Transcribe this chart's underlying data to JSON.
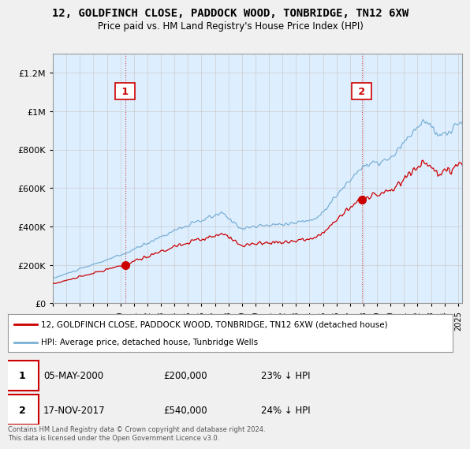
{
  "title": "12, GOLDFINCH CLOSE, PADDOCK WOOD, TONBRIDGE, TN12 6XW",
  "subtitle": "Price paid vs. HM Land Registry's House Price Index (HPI)",
  "sale1_date": "05-MAY-2000",
  "sale1_price": 200000,
  "sale1_pct": "23%",
  "sale1_label": "1",
  "sale2_date": "17-NOV-2017",
  "sale2_price": 540000,
  "sale2_pct": "24%",
  "sale2_label": "2",
  "red_line_color": "#cc0000",
  "blue_line_color": "#7ab0d4",
  "bg_color": "#f0f0f0",
  "plot_bg_color": "#ddeeff",
  "legend_label_red": "12, GOLDFINCH CLOSE, PADDOCK WOOD, TONBRIDGE, TN12 6XW (detached house)",
  "legend_label_blue": "HPI: Average price, detached house, Tunbridge Wells",
  "footer": "Contains HM Land Registry data © Crown copyright and database right 2024.\nThis data is licensed under the Open Government Licence v3.0.",
  "ylim": [
    0,
    1300000
  ],
  "yticks": [
    0,
    200000,
    400000,
    600000,
    800000,
    1000000,
    1200000
  ],
  "xlim_start": 1995.0,
  "xlim_end": 2025.3,
  "sale1_year": 2000.37,
  "sale2_year": 2017.87
}
